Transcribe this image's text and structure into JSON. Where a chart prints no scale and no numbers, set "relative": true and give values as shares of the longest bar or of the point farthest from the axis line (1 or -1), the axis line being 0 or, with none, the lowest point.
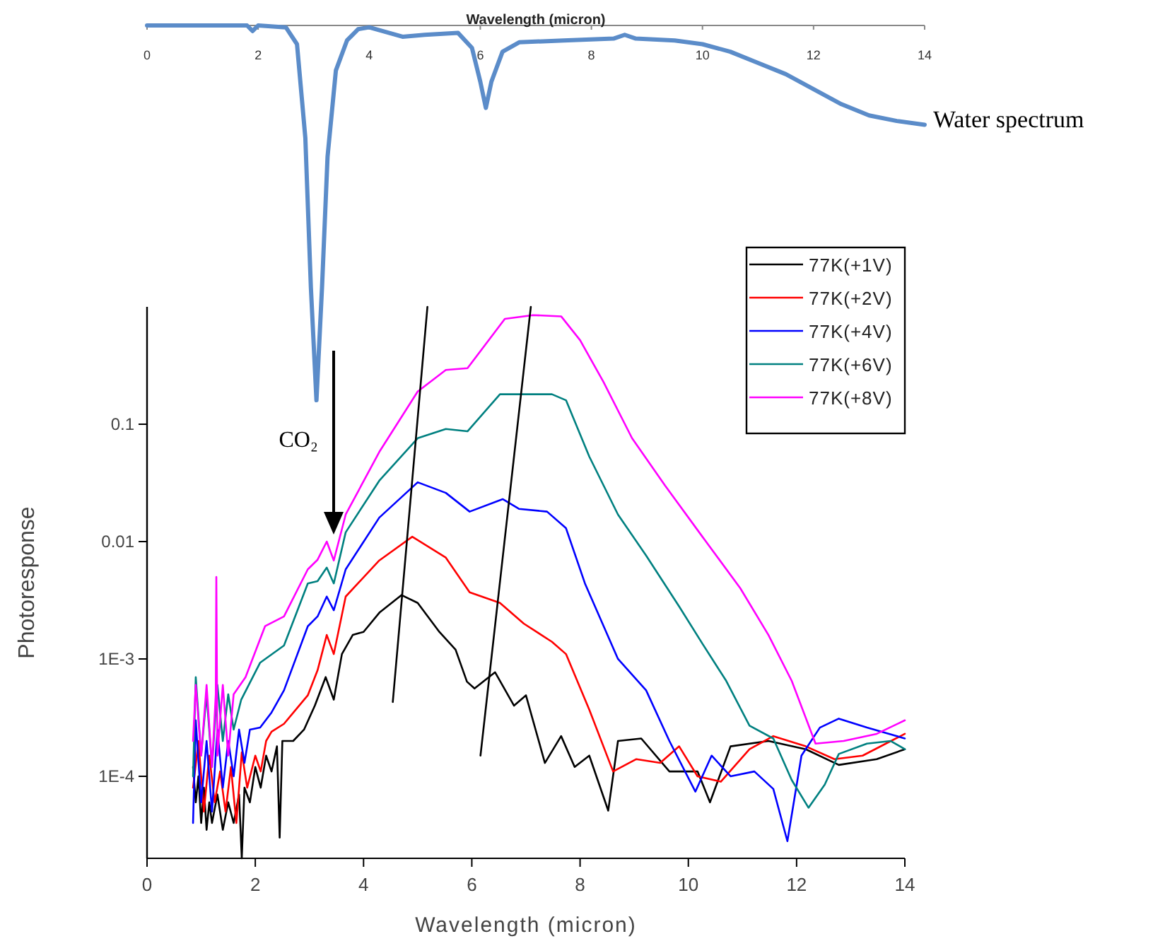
{
  "chart_data": [
    {
      "type": "line",
      "relative": true,
      "xlabel": "Wavelength (micron)",
      "xlim": [
        0,
        14
      ],
      "xticks": [
        0,
        2,
        4,
        6,
        8,
        10,
        12,
        14
      ],
      "annotations": [
        "Water spectrum"
      ],
      "series": [
        {
          "color": "#5b8cc9",
          "x": [
            0,
            1.8,
            1.9,
            2.0,
            2.5,
            2.7,
            2.85,
            2.95,
            3.05,
            3.15,
            3.25,
            3.4,
            3.6,
            3.8,
            4.0,
            4.6,
            5.0,
            5.6,
            5.85,
            6.0,
            6.1,
            6.2,
            6.4,
            6.7,
            7.5,
            8.4,
            8.6,
            8.8,
            9.5,
            10.0,
            10.5,
            11.0,
            11.5,
            12.0,
            12.5,
            13.0,
            13.5,
            14
          ],
          "values": [
            0,
            0,
            -0.015,
            0,
            -0.005,
            -0.05,
            -0.3,
            -0.7,
            -1,
            -0.7,
            -0.35,
            -0.12,
            -0.04,
            -0.01,
            -0.005,
            -0.03,
            -0.025,
            -0.02,
            -0.06,
            -0.15,
            -0.22,
            -0.15,
            -0.07,
            -0.045,
            -0.04,
            -0.035,
            -0.025,
            -0.035,
            -0.04,
            -0.05,
            -0.07,
            -0.1,
            -0.13,
            -0.17,
            -0.21,
            -0.24,
            -0.255,
            -0.265
          ]
        }
      ]
    },
    {
      "type": "line",
      "xlabel": "Wavelength (micron)",
      "ylabel": "Photoresponse",
      "xlim": [
        0,
        14
      ],
      "xticks": [
        0,
        2,
        4,
        6,
        8,
        10,
        12,
        14
      ],
      "ylim": [
        2e-05,
        1
      ],
      "yticks": [
        {
          "value": 0.0001,
          "label": "1E-4"
        },
        {
          "value": 0.001,
          "label": "1E-3"
        },
        0.01,
        0.1
      ],
      "log": "y",
      "legend": "top right",
      "annotations": [
        "CO₂"
      ],
      "series": [
        {
          "name": "77K(+1V)",
          "color": "#000000",
          "x": [
            0.85,
            0.9,
            0.95,
            1.0,
            1.05,
            1.1,
            1.15,
            1.2,
            1.3,
            1.4,
            1.5,
            1.6,
            1.7,
            1.75,
            1.8,
            1.9,
            2.0,
            2.1,
            2.2,
            2.3,
            2.4,
            2.45,
            2.5,
            2.7,
            2.9,
            3.1,
            3.3,
            3.45,
            3.6,
            3.8,
            4.0,
            4.3,
            4.7,
            5.0,
            5.4,
            5.7,
            5.91,
            6.05,
            6.43,
            6.78,
            7.0,
            7.35,
            7.65,
            7.9,
            8.17,
            8.52,
            8.7,
            9.13,
            9.65,
            10.17,
            10.4,
            10.78,
            11.48,
            12.17,
            12.78,
            13.48,
            14
          ],
          "values": [
            0.00012,
            6e-05,
            0.0001,
            4e-05,
            8e-05,
            3.5e-05,
            6e-05,
            4e-05,
            7e-05,
            3.5e-05,
            6e-05,
            4e-05,
            7e-05,
            2e-05,
            8e-05,
            6e-05,
            0.00012,
            8e-05,
            0.00015,
            0.00011,
            0.00018,
            3e-05,
            0.0002,
            0.0002,
            0.00025,
            0.0004,
            0.0007,
            0.00045,
            0.0011,
            0.0016,
            0.0017,
            0.0025,
            0.0035,
            0.003,
            0.0017,
            0.0012,
            0.00064,
            0.00056,
            0.00077,
            0.0004,
            0.00049,
            0.00013,
            0.00022,
            0.00012,
            0.00015,
            5.1e-05,
            0.0002,
            0.00021,
            0.00011,
            0.00011,
            6e-05,
            0.00018,
            0.0002,
            0.00017,
            0.000125,
            0.00014,
            0.00017
          ]
        },
        {
          "name": "77K(+2V)",
          "color": "#ff0000",
          "x": [
            0.85,
            0.95,
            1.05,
            1.15,
            1.25,
            1.35,
            1.45,
            1.55,
            1.65,
            1.75,
            1.85,
            2.0,
            2.1,
            2.2,
            2.3,
            2.53,
            2.97,
            3.15,
            3.32,
            3.45,
            3.67,
            4.29,
            4.9,
            5.52,
            5.96,
            6.52,
            6.96,
            7.48,
            7.74,
            8.17,
            8.61,
            9.04,
            9.48,
            9.83,
            10.17,
            10.6,
            11.13,
            11.57,
            12.17,
            12.7,
            13.22,
            14
          ],
          "values": [
            8e-05,
            0.0002,
            5e-05,
            0.00015,
            6e-05,
            0.00011,
            5e-05,
            0.00012,
            4e-05,
            0.00016,
            8e-05,
            0.00015,
            0.00011,
            0.0002,
            0.00024,
            0.00028,
            0.00049,
            0.0008,
            0.0016,
            0.0011,
            0.0034,
            0.0069,
            0.011,
            0.0073,
            0.0037,
            0.003,
            0.002,
            0.0014,
            0.0011,
            0.00037,
            0.00011,
            0.00014,
            0.00013,
            0.00018,
            0.0001,
            9e-05,
            0.00017,
            0.00022,
            0.00018,
            0.00014,
            0.00015,
            0.00023
          ]
        },
        {
          "name": "77K(+4V)",
          "color": "#0000ff",
          "x": [
            0.85,
            0.9,
            1.0,
            1.1,
            1.2,
            1.3,
            1.4,
            1.5,
            1.6,
            1.7,
            1.8,
            1.9,
            2.09,
            2.3,
            2.53,
            2.97,
            3.15,
            3.32,
            3.45,
            3.67,
            4.29,
            5.0,
            5.52,
            5.96,
            6.57,
            6.87,
            7.39,
            7.74,
            8.09,
            8.7,
            9.22,
            9.65,
            10.13,
            10.43,
            10.78,
            11.22,
            11.57,
            11.83,
            12.09,
            12.43,
            12.78,
            13.3,
            14
          ],
          "values": [
            4e-05,
            0.0003,
            6e-05,
            0.0002,
            5e-05,
            0.00025,
            8e-05,
            0.0002,
            0.0001,
            0.00025,
            0.00013,
            0.00025,
            0.00026,
            0.00035,
            0.00054,
            0.0019,
            0.0023,
            0.0034,
            0.0026,
            0.0058,
            0.016,
            0.032,
            0.026,
            0.018,
            0.023,
            0.019,
            0.018,
            0.013,
            0.0044,
            0.001,
            0.00054,
            0.0002,
            7.4e-05,
            0.00015,
            0.0001,
            0.00011,
            7.8e-05,
            2.8e-05,
            0.00015,
            0.00026,
            0.00031,
            0.00026,
            0.00021
          ]
        },
        {
          "name": "77K(+6V)",
          "color": "#008080",
          "x": [
            0.85,
            0.9,
            1.0,
            1.1,
            1.2,
            1.3,
            1.4,
            1.5,
            1.6,
            1.74,
            2.09,
            2.53,
            2.97,
            3.15,
            3.32,
            3.45,
            3.67,
            4.29,
            5.0,
            5.52,
            5.92,
            6.52,
            6.96,
            7.48,
            7.74,
            8.17,
            8.7,
            9.22,
            9.83,
            10.26,
            10.7,
            11.13,
            11.57,
            11.91,
            12.22,
            12.52,
            12.78,
            13.3,
            13.74,
            14
          ],
          "values": [
            0.0001,
            0.0007,
            0.00015,
            0.0005,
            0.00012,
            0.0006,
            0.0002,
            0.0005,
            0.00025,
            0.00045,
            0.00093,
            0.0013,
            0.0044,
            0.0046,
            0.006,
            0.0044,
            0.012,
            0.033,
            0.076,
            0.091,
            0.087,
            0.18,
            0.18,
            0.18,
            0.16,
            0.053,
            0.017,
            0.0076,
            0.0028,
            0.00135,
            0.00065,
            0.00027,
            0.00021,
            9.3e-05,
            5.4e-05,
            8.5e-05,
            0.000155,
            0.00019,
            0.0002,
            0.00017
          ]
        },
        {
          "name": "77K(+8V)",
          "color": "#ff00ff",
          "x": [
            0.85,
            0.9,
            1.0,
            1.1,
            1.2,
            1.27,
            1.28,
            1.3,
            1.4,
            1.5,
            1.6,
            1.82,
            2.18,
            2.53,
            2.97,
            3.15,
            3.32,
            3.45,
            3.67,
            4.29,
            5.0,
            5.52,
            5.92,
            6.61,
            7.13,
            7.65,
            8.0,
            8.43,
            8.96,
            9.57,
            10.26,
            10.96,
            11.48,
            11.91,
            12.35,
            12.87,
            13.48,
            14
          ],
          "values": [
            0.0002,
            0.0006,
            0.00015,
            0.0006,
            0.00012,
            0.0005,
            0.005,
            0.00015,
            0.0006,
            0.00015,
            0.0005,
            0.0007,
            0.0019,
            0.0023,
            0.0058,
            0.007,
            0.01,
            0.0069,
            0.017,
            0.058,
            0.19,
            0.29,
            0.3,
            0.79,
            0.85,
            0.83,
            0.52,
            0.23,
            0.076,
            0.03,
            0.011,
            0.004,
            0.0016,
            0.00065,
            0.00019,
            0.0002,
            0.00023,
            0.0003
          ]
        },
        {
          "type": "line",
          "color": "#000000",
          "x": [
            4.54,
            5.18
          ],
          "values": [
            0.00043,
            1
          ]
        },
        {
          "type": "line",
          "color": "#000000",
          "x": [
            6.16,
            7.09
          ],
          "values": [
            0.00015,
            1
          ]
        }
      ]
    }
  ]
}
